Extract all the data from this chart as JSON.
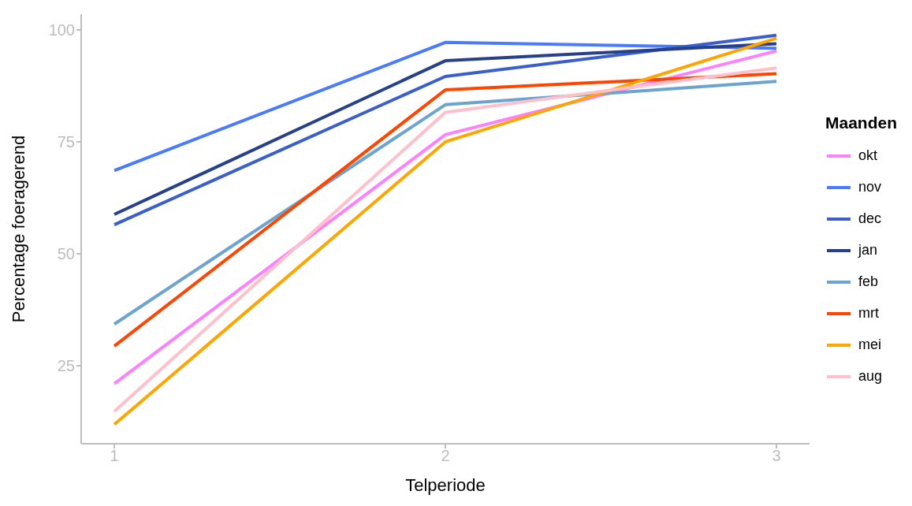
{
  "chart_data": {
    "type": "line",
    "xlabel": "Telperiode",
    "ylabel": "Percentage foeragerend",
    "legend_title": "Maanden",
    "x": [
      1,
      2,
      3
    ],
    "series": [
      {
        "name": "okt",
        "color": "#ff80ff",
        "values": [
          21.0,
          76.6,
          95.3
        ]
      },
      {
        "name": "nov",
        "color": "#4a7bff",
        "values": [
          68.6,
          97.2,
          95.9
        ]
      },
      {
        "name": "dec",
        "color": "#3a5fcd",
        "values": [
          56.5,
          89.6,
          98.8
        ]
      },
      {
        "name": "jan",
        "color": "#27408b",
        "values": [
          58.8,
          93.1,
          96.9
        ]
      },
      {
        "name": "feb",
        "color": "#6ba4cf",
        "values": [
          34.3,
          83.3,
          88.5
        ]
      },
      {
        "name": "mrt",
        "color": "#ff4500",
        "values": [
          29.4,
          86.6,
          90.2
        ]
      },
      {
        "name": "mei",
        "color": "#ffa500",
        "values": [
          11.9,
          75.0,
          98.1
        ]
      },
      {
        "name": "aug",
        "color": "#ffc0cb",
        "values": [
          14.8,
          81.6,
          91.5
        ]
      }
    ],
    "xlim": [
      0.9,
      3.1
    ],
    "xticks": [
      1,
      2,
      3
    ],
    "ylim": [
      7.6,
      103.5
    ],
    "yticks": [
      25,
      50,
      75,
      100
    ],
    "grid": false,
    "legend": "right",
    "marker": "none",
    "line_style": "solid"
  }
}
